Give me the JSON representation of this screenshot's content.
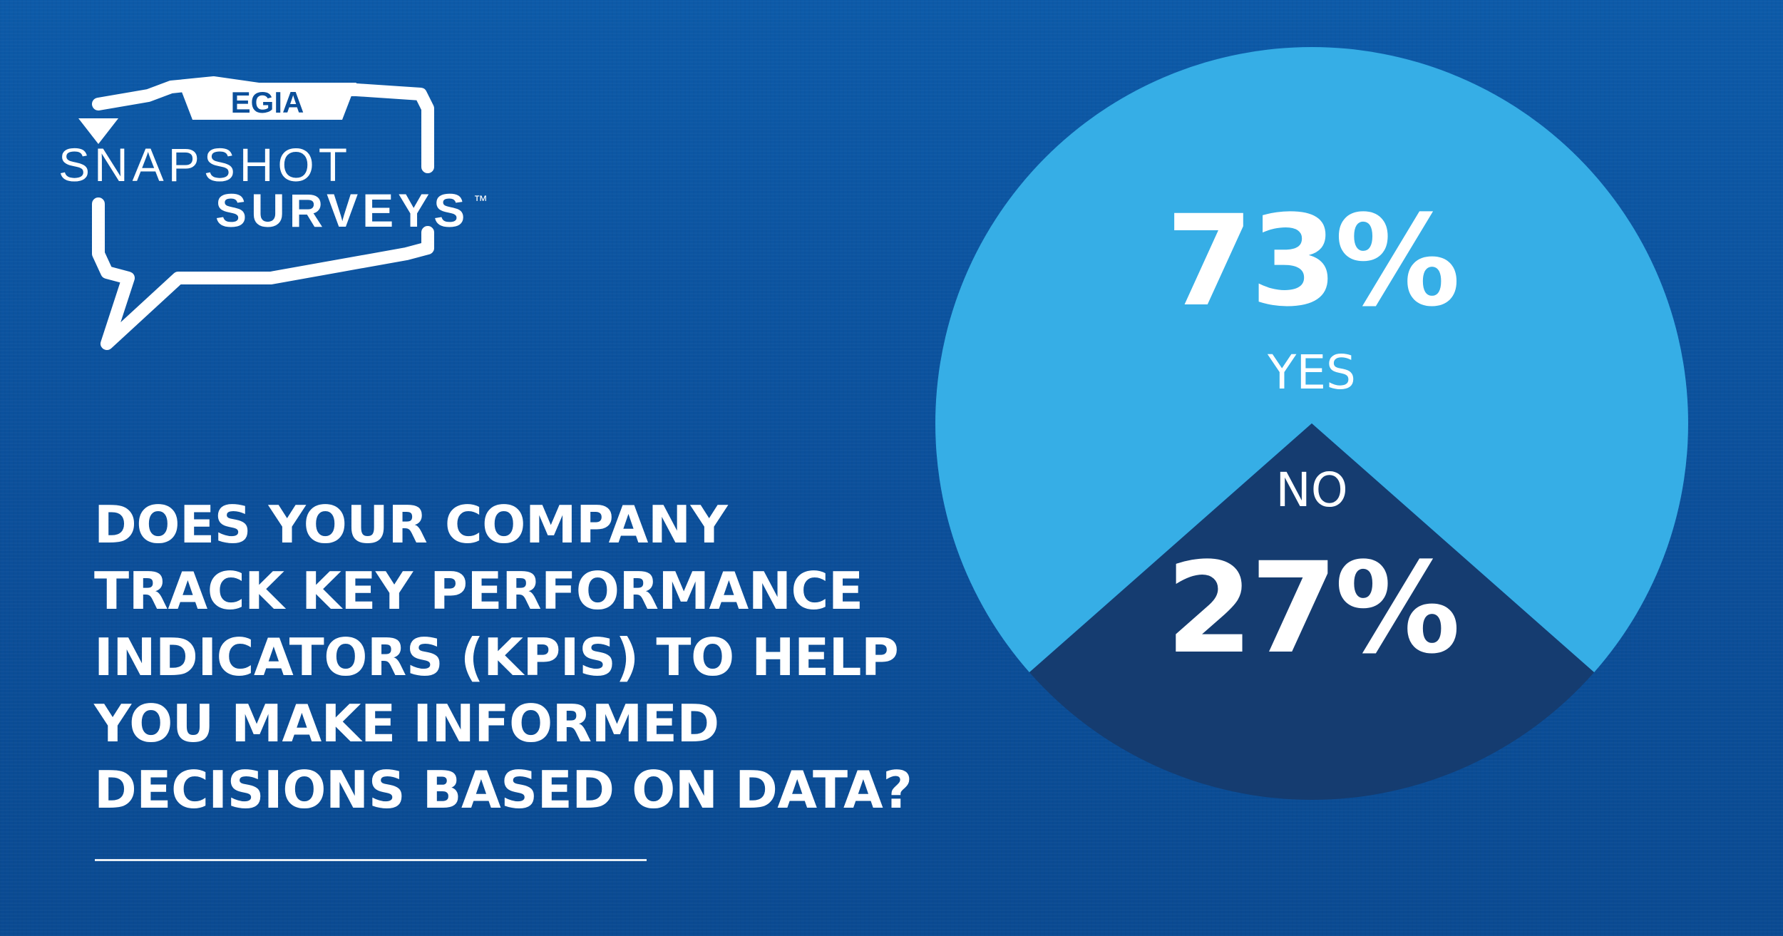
{
  "brand": {
    "top": "EGIA",
    "line1": "SNAPSHOT",
    "line2": "SURVEYS",
    "trademark": "™"
  },
  "question": {
    "lines": [
      "DOES YOUR COMPANY",
      "TRACK KEY PERFORMANCE",
      "INDICATORS (KPIS) TO HELP",
      "YOU MAKE INFORMED",
      "DECISIONS BASED ON DATA?"
    ]
  },
  "colors": {
    "background": "#0b4f9a",
    "yes": "#36aee6",
    "no": "#153c70",
    "text": "#ffffff"
  },
  "chart_data": {
    "type": "pie",
    "title": "",
    "slices": [
      {
        "label": "YES",
        "value": 73,
        "display": "73%",
        "color": "#36aee6"
      },
      {
        "label": "NO",
        "value": 27,
        "display": "27%",
        "color": "#153c70"
      }
    ],
    "start_angle_deg": 180,
    "legend": "none"
  }
}
